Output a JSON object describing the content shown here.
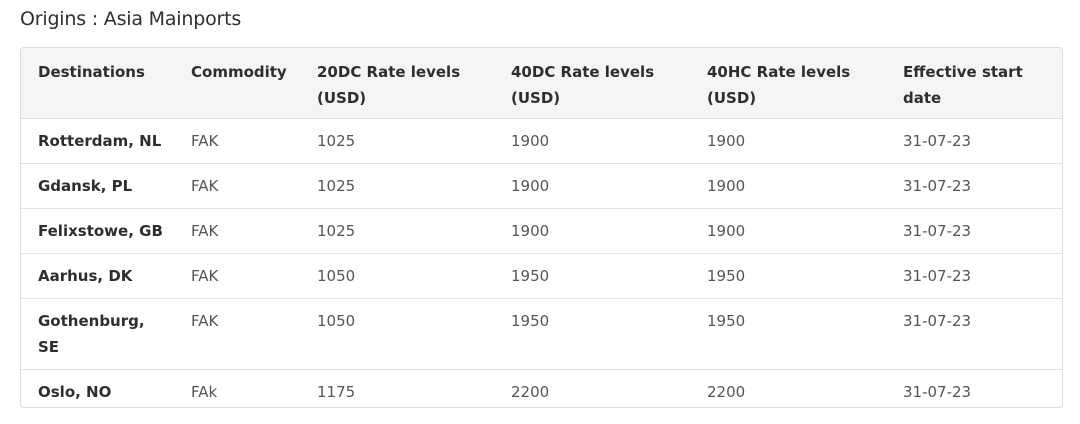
{
  "title": "Origins : Asia Mainports",
  "table": {
    "headers": [
      "Destinations",
      "Commodity",
      "20DC Rate levels (USD)",
      "40DC Rate levels (USD)",
      "40HC Rate levels (USD)",
      "Effective start date"
    ],
    "rows": [
      [
        "Rotterdam, NL",
        "FAK",
        "1025",
        "1900",
        "1900",
        "31-07-23"
      ],
      [
        "Gdansk, PL",
        "FAK",
        "1025",
        "1900",
        "1900",
        "31-07-23"
      ],
      [
        "Felixstowe, GB",
        "FAK",
        "1025",
        "1900",
        "1900",
        "31-07-23"
      ],
      [
        "Aarhus, DK",
        "FAK",
        "1050",
        "1950",
        "1950",
        "31-07-23"
      ],
      [
        "Gothenburg, SE",
        "FAK",
        "1050",
        "1950",
        "1950",
        "31-07-23"
      ],
      [
        "Oslo, NO",
        "FAk",
        "1175",
        "2200",
        "2200",
        "31-07-23"
      ]
    ]
  }
}
